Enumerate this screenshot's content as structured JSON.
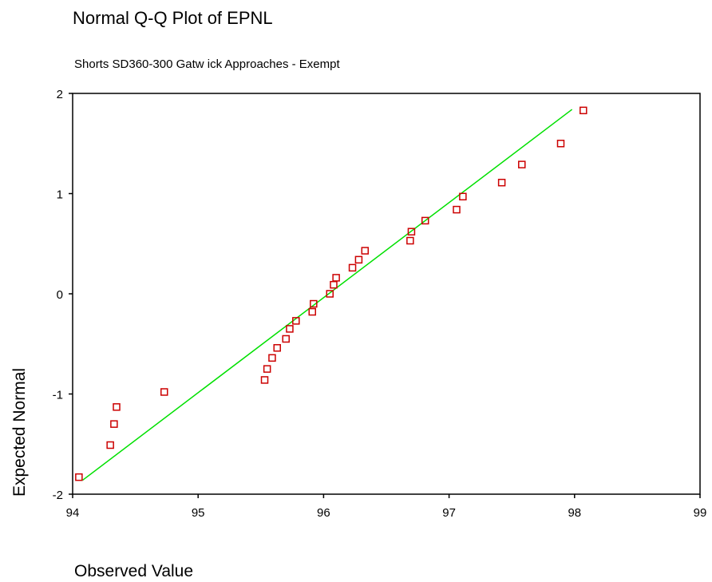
{
  "chart_data": {
    "type": "scatter",
    "title": "Normal Q-Q Plot of EPNL",
    "subtitle": "Shorts SD360-300 Gatw ick Approaches - Exempt",
    "xlabel": "Observed Value",
    "ylabel": "Expected Normal",
    "xlim": [
      94,
      99
    ],
    "ylim": [
      -2,
      2
    ],
    "x_ticks": [
      94,
      95,
      96,
      97,
      98,
      99
    ],
    "y_ticks": [
      2,
      1,
      0,
      -1,
      -2
    ],
    "grid": false,
    "legend": "none",
    "colors": {
      "points": "#cc0000",
      "reference_line": "#00e000",
      "axes": "#000000"
    },
    "points": [
      {
        "x": 94.05,
        "y": -1.83
      },
      {
        "x": 94.3,
        "y": -1.51
      },
      {
        "x": 94.33,
        "y": -1.3
      },
      {
        "x": 94.35,
        "y": -1.13
      },
      {
        "x": 94.73,
        "y": -0.98
      },
      {
        "x": 95.53,
        "y": -0.86
      },
      {
        "x": 95.55,
        "y": -0.75
      },
      {
        "x": 95.59,
        "y": -0.64
      },
      {
        "x": 95.63,
        "y": -0.54
      },
      {
        "x": 95.7,
        "y": -0.45
      },
      {
        "x": 95.73,
        "y": -0.35
      },
      {
        "x": 95.78,
        "y": -0.27
      },
      {
        "x": 95.91,
        "y": -0.18
      },
      {
        "x": 95.92,
        "y": -0.1
      },
      {
        "x": 96.05,
        "y": 0.0
      },
      {
        "x": 96.08,
        "y": 0.09
      },
      {
        "x": 96.1,
        "y": 0.16
      },
      {
        "x": 96.23,
        "y": 0.26
      },
      {
        "x": 96.28,
        "y": 0.34
      },
      {
        "x": 96.33,
        "y": 0.43
      },
      {
        "x": 96.69,
        "y": 0.53
      },
      {
        "x": 96.7,
        "y": 0.62
      },
      {
        "x": 96.81,
        "y": 0.73
      },
      {
        "x": 97.06,
        "y": 0.84
      },
      {
        "x": 97.11,
        "y": 0.97
      },
      {
        "x": 97.42,
        "y": 1.11
      },
      {
        "x": 97.58,
        "y": 1.29
      },
      {
        "x": 97.89,
        "y": 1.5
      },
      {
        "x": 98.07,
        "y": 1.83
      }
    ],
    "reference_line": {
      "x": [
        94.08,
        97.98
      ],
      "y": [
        -1.86,
        1.84
      ]
    }
  }
}
